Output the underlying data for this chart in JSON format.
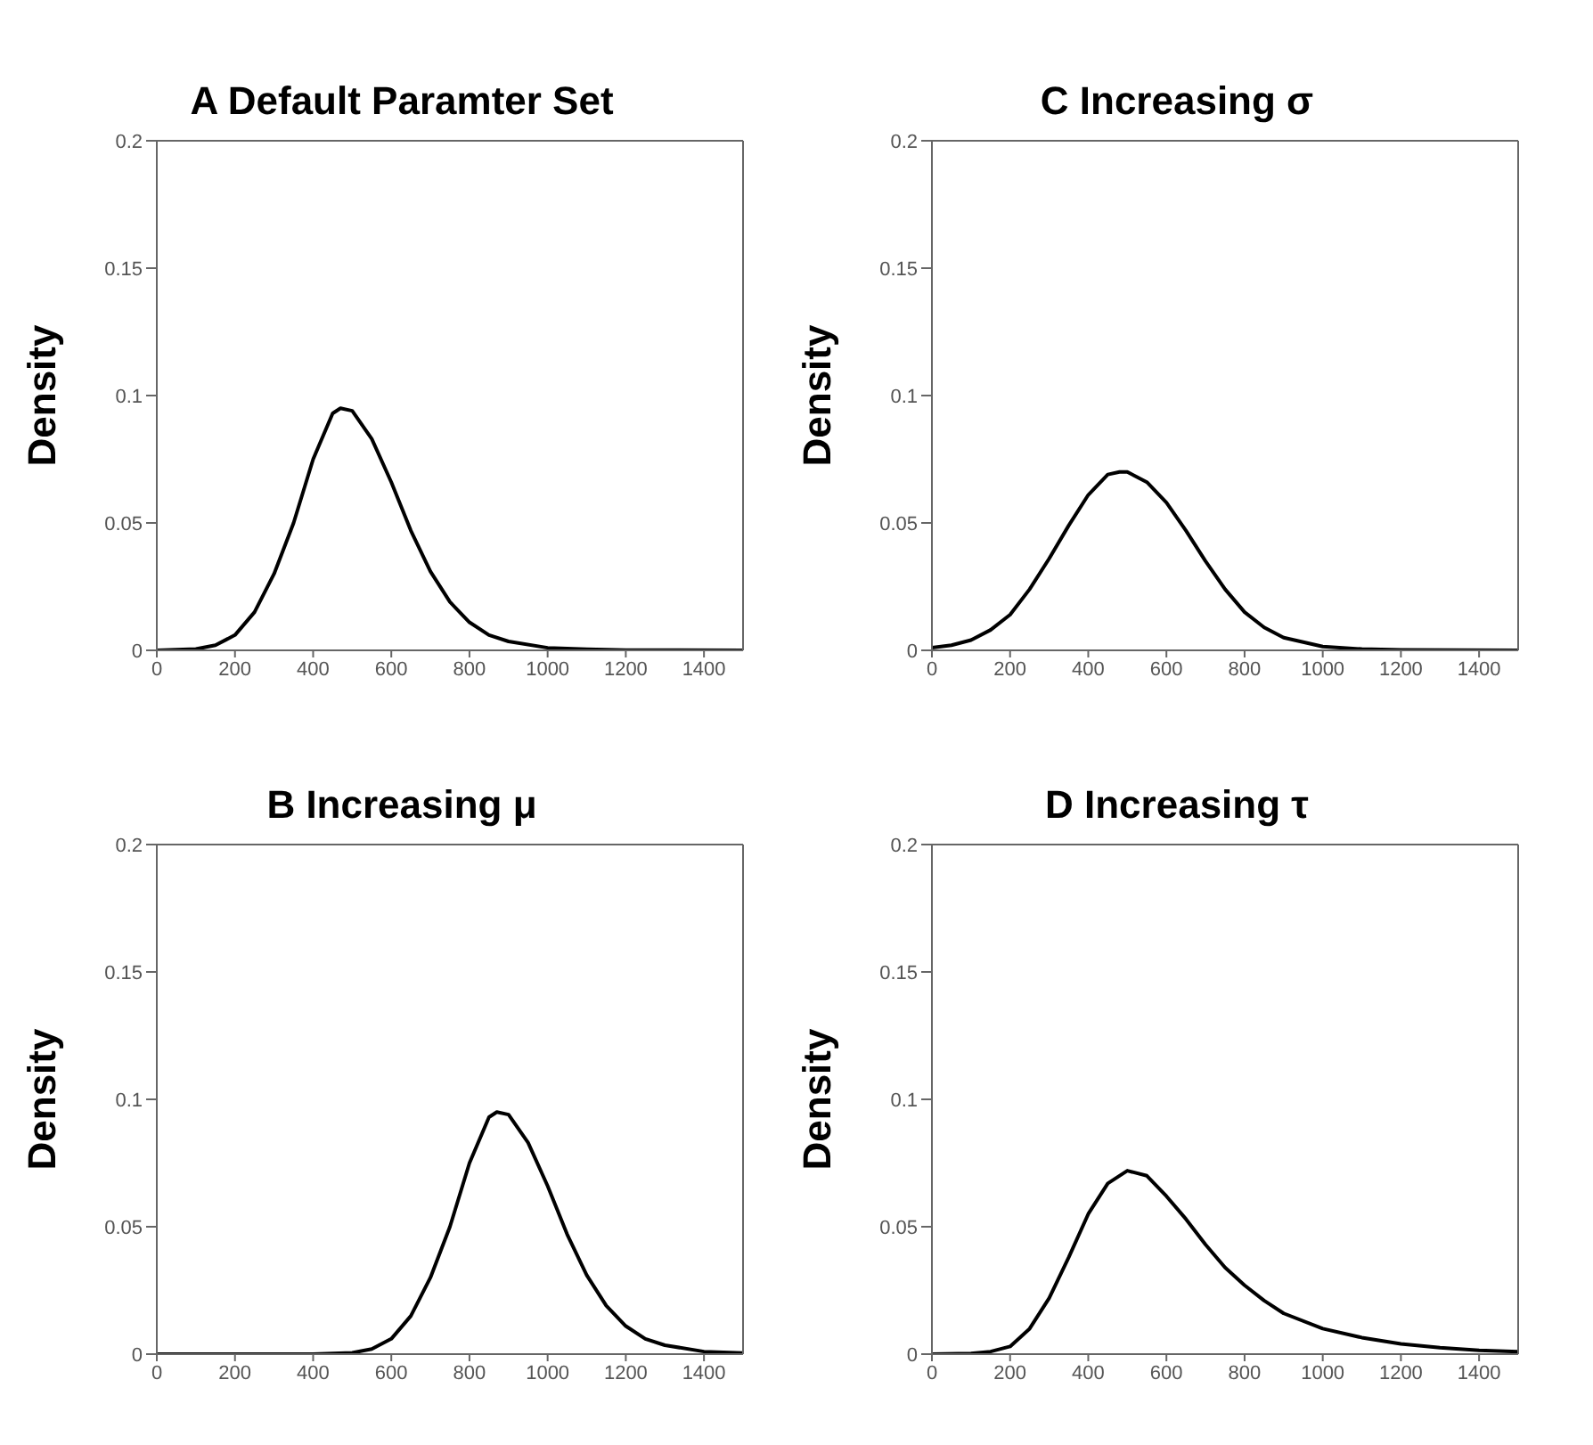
{
  "chart_data": [
    {
      "type": "line",
      "title": "A Default Paramter Set",
      "ylabel": "Density",
      "xlim": [
        0,
        1500
      ],
      "xticks": [
        0,
        200,
        400,
        600,
        800,
        1000,
        1200,
        1400
      ],
      "ylim": [
        0,
        0.2
      ],
      "yticks": [
        0,
        0.05,
        0.1,
        0.15,
        0.2
      ],
      "marker": "none",
      "line_style": "solid",
      "series": [
        {
          "color": "#000000",
          "x": [
            0,
            100,
            150,
            200,
            250,
            300,
            350,
            400,
            450,
            470,
            500,
            550,
            600,
            650,
            700,
            750,
            800,
            850,
            900,
            1000,
            1100,
            1200,
            1500
          ],
          "values": [
            0,
            0.0005,
            0.002,
            0.006,
            0.015,
            0.03,
            0.05,
            0.075,
            0.093,
            0.095,
            0.094,
            0.083,
            0.066,
            0.047,
            0.031,
            0.019,
            0.011,
            0.006,
            0.0035,
            0.001,
            0.0004,
            0.0001,
            0
          ]
        }
      ]
    },
    {
      "type": "line",
      "title": "C Increasing σ",
      "ylabel": "Density",
      "xlim": [
        0,
        1500
      ],
      "xticks": [
        0,
        200,
        400,
        600,
        800,
        1000,
        1200,
        1400
      ],
      "ylim": [
        0,
        0.2
      ],
      "yticks": [
        0,
        0.05,
        0.1,
        0.15,
        0.2
      ],
      "marker": "none",
      "line_style": "solid",
      "series": [
        {
          "color": "#000000",
          "x": [
            0,
            50,
            100,
            150,
            200,
            250,
            300,
            350,
            400,
            450,
            480,
            500,
            550,
            600,
            650,
            700,
            750,
            800,
            850,
            900,
            1000,
            1100,
            1200,
            1500
          ],
          "values": [
            0.001,
            0.002,
            0.004,
            0.008,
            0.014,
            0.024,
            0.036,
            0.049,
            0.061,
            0.069,
            0.07,
            0.07,
            0.066,
            0.058,
            0.047,
            0.035,
            0.024,
            0.015,
            0.009,
            0.005,
            0.0015,
            0.0005,
            0.0002,
            0
          ]
        }
      ]
    },
    {
      "type": "line",
      "title": "B Increasing μ",
      "ylabel": "Density",
      "xlim": [
        0,
        1500
      ],
      "xticks": [
        0,
        200,
        400,
        600,
        800,
        1000,
        1200,
        1400
      ],
      "ylim": [
        0,
        0.2
      ],
      "yticks": [
        0,
        0.05,
        0.1,
        0.15,
        0.2
      ],
      "marker": "none",
      "line_style": "solid",
      "series": [
        {
          "color": "#000000",
          "x": [
            0,
            400,
            500,
            550,
            600,
            650,
            700,
            750,
            800,
            850,
            870,
            900,
            950,
            1000,
            1050,
            1100,
            1150,
            1200,
            1250,
            1300,
            1400,
            1500
          ],
          "values": [
            0,
            0,
            0.0005,
            0.002,
            0.006,
            0.015,
            0.03,
            0.05,
            0.075,
            0.093,
            0.095,
            0.094,
            0.083,
            0.066,
            0.047,
            0.031,
            0.019,
            0.011,
            0.006,
            0.0035,
            0.001,
            0.0004
          ]
        }
      ]
    },
    {
      "type": "line",
      "title": "D Increasing τ",
      "ylabel": "Density",
      "xlim": [
        0,
        1500
      ],
      "xticks": [
        0,
        200,
        400,
        600,
        800,
        1000,
        1200,
        1400
      ],
      "ylim": [
        0,
        0.2
      ],
      "yticks": [
        0,
        0.05,
        0.1,
        0.15,
        0.2
      ],
      "marker": "none",
      "line_style": "solid",
      "series": [
        {
          "color": "#000000",
          "x": [
            0,
            100,
            150,
            200,
            250,
            300,
            350,
            400,
            450,
            500,
            550,
            600,
            650,
            700,
            750,
            800,
            850,
            900,
            1000,
            1100,
            1200,
            1300,
            1400,
            1500
          ],
          "values": [
            0,
            0.0003,
            0.001,
            0.003,
            0.01,
            0.022,
            0.038,
            0.055,
            0.067,
            0.072,
            0.07,
            0.062,
            0.053,
            0.043,
            0.034,
            0.027,
            0.021,
            0.016,
            0.01,
            0.0065,
            0.004,
            0.0025,
            0.0015,
            0.001
          ]
        }
      ]
    }
  ]
}
